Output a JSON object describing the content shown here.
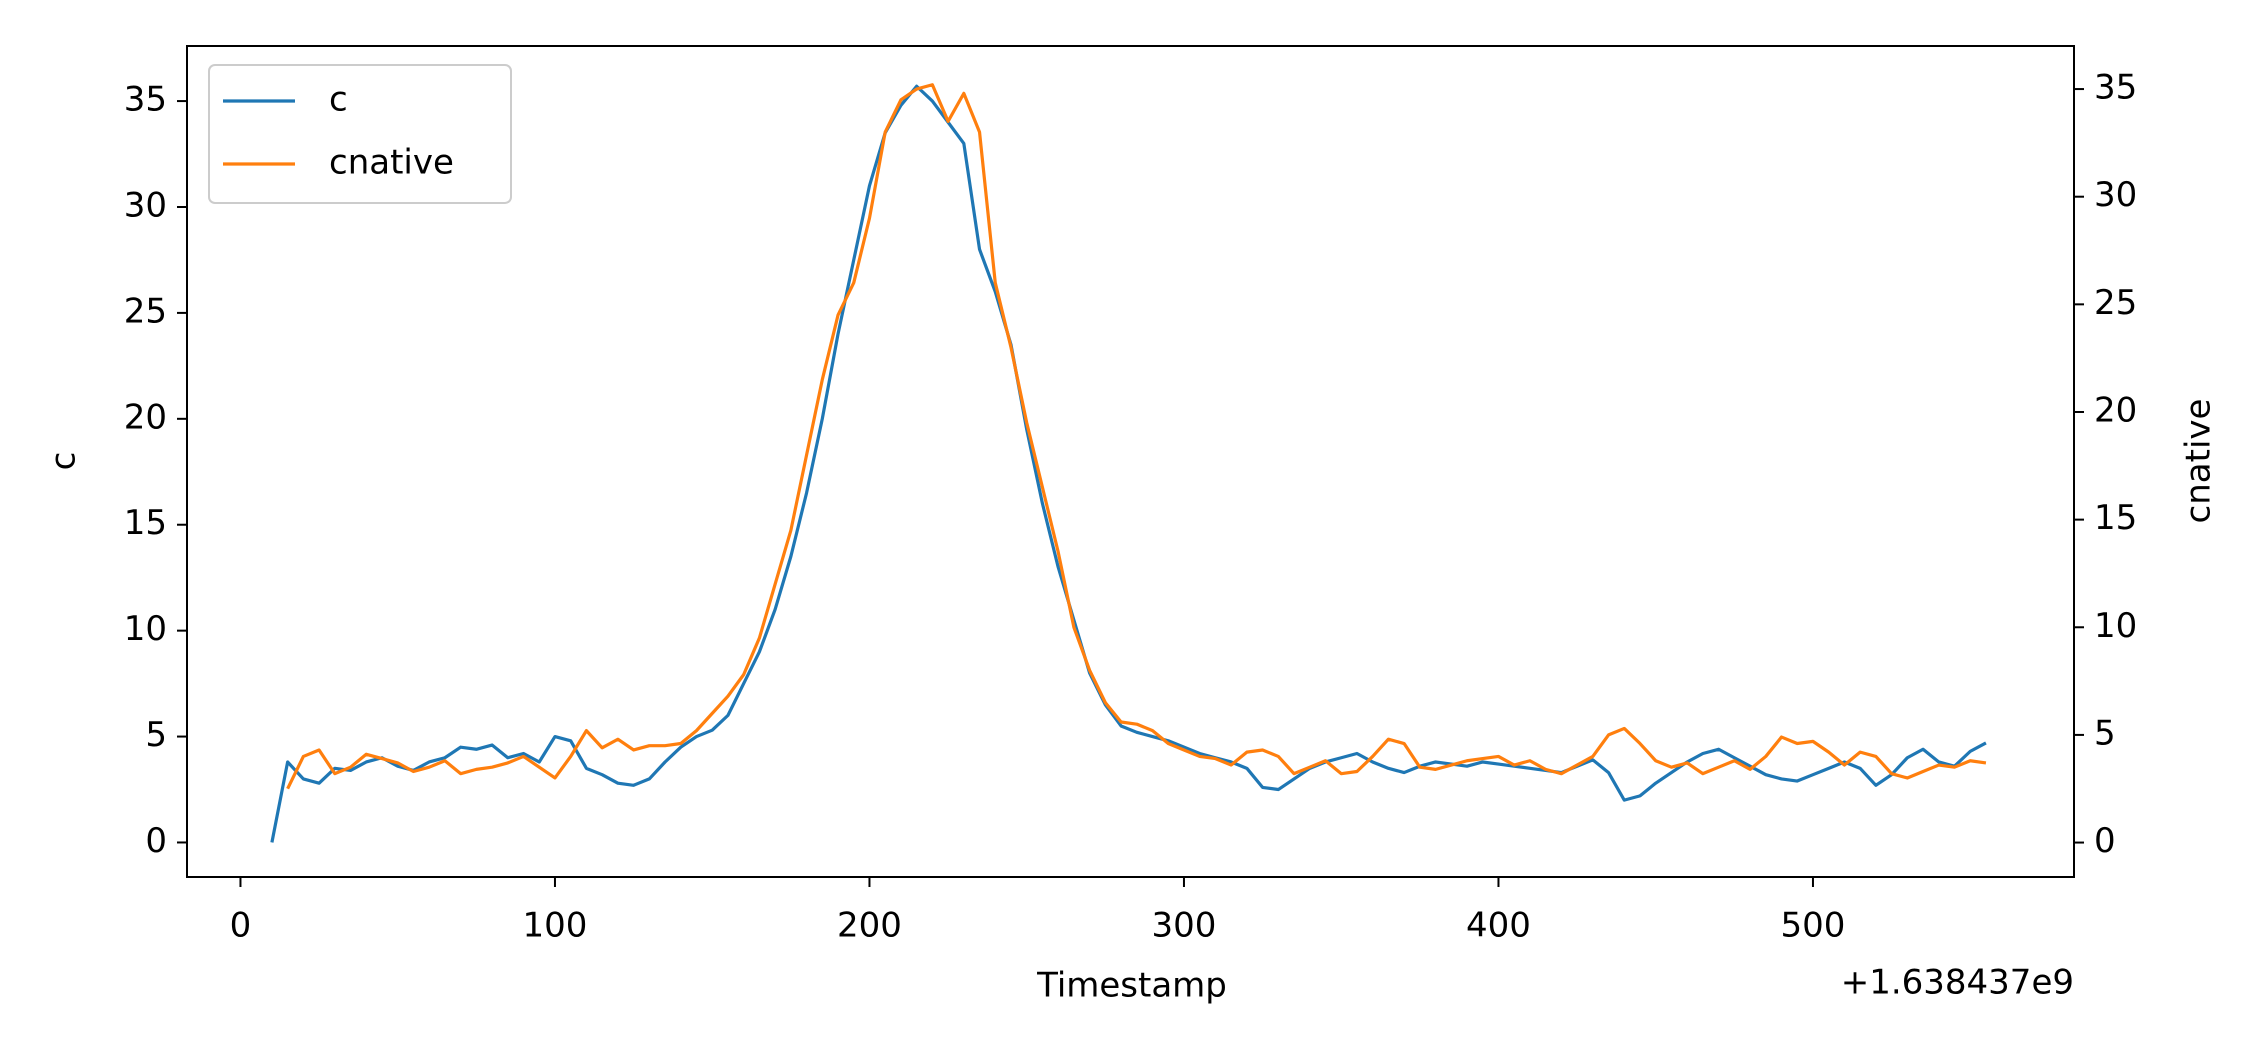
{
  "chart_data": {
    "type": "line",
    "x_label": "Timestamp",
    "y_label": "c",
    "y2_label": "cnative",
    "x_offset_label": "+1.638437e9",
    "x": [
      10,
      15,
      20,
      25,
      30,
      35,
      40,
      45,
      50,
      55,
      60,
      65,
      70,
      75,
      80,
      85,
      90,
      95,
      100,
      105,
      110,
      115,
      120,
      125,
      130,
      135,
      140,
      145,
      150,
      155,
      160,
      165,
      170,
      175,
      180,
      185,
      190,
      195,
      200,
      205,
      210,
      215,
      220,
      225,
      230,
      235,
      240,
      245,
      250,
      255,
      260,
      265,
      270,
      275,
      280,
      285,
      290,
      295,
      300,
      305,
      310,
      315,
      320,
      325,
      330,
      335,
      340,
      345,
      350,
      355,
      360,
      365,
      370,
      375,
      380,
      385,
      390,
      395,
      400,
      405,
      410,
      415,
      420,
      425,
      430,
      435,
      440,
      445,
      450,
      455,
      460,
      465,
      470,
      475,
      480,
      485,
      490,
      495,
      500,
      505,
      510,
      515,
      520,
      525,
      530,
      535,
      540,
      545,
      550,
      555
    ],
    "series": [
      {
        "name": "c",
        "color": "#1f77b4",
        "axis": "y",
        "values": [
          0,
          3.8,
          3.0,
          2.8,
          3.5,
          3.4,
          3.8,
          4.0,
          3.6,
          3.4,
          3.8,
          4.0,
          4.5,
          4.4,
          4.6,
          4.0,
          4.2,
          3.8,
          5.0,
          4.8,
          3.5,
          3.2,
          2.8,
          2.7,
          3.0,
          3.8,
          4.5,
          5.0,
          5.3,
          6.0,
          7.5,
          9.0,
          11.0,
          13.5,
          16.5,
          20.0,
          24.0,
          27.5,
          31.0,
          33.5,
          34.8,
          35.7,
          35.0,
          34.0,
          33.0,
          28.0,
          26.0,
          23.5,
          19.5,
          16.0,
          13.0,
          10.5,
          8.0,
          6.5,
          5.5,
          5.2,
          5.0,
          4.8,
          4.5,
          4.2,
          4.0,
          3.8,
          3.5,
          2.6,
          2.5,
          3.0,
          3.5,
          3.8,
          4.0,
          4.2,
          3.8,
          3.5,
          3.3,
          3.6,
          3.8,
          3.7,
          3.6,
          3.8,
          3.7,
          3.6,
          3.5,
          3.4,
          3.3,
          3.6,
          3.9,
          3.3,
          2.0,
          2.2,
          2.8,
          3.3,
          3.8,
          4.2,
          4.4,
          4.0,
          3.6,
          3.2,
          3.0,
          2.9,
          3.2,
          3.5,
          3.8,
          3.5,
          2.7,
          3.2,
          4.0,
          4.4,
          3.8,
          3.6,
          4.3,
          4.7
        ]
      },
      {
        "name": "cnative",
        "color": "#ff7f0e",
        "axis": "y2",
        "values": [
          null,
          2.5,
          4.0,
          4.3,
          3.2,
          3.5,
          4.1,
          3.9,
          3.7,
          3.3,
          3.5,
          3.8,
          3.2,
          3.4,
          3.5,
          3.7,
          4.0,
          3.5,
          3.0,
          4.0,
          5.2,
          4.4,
          4.8,
          4.3,
          4.5,
          4.5,
          4.6,
          5.2,
          6.0,
          6.8,
          7.8,
          9.5,
          12.0,
          14.5,
          18.0,
          21.5,
          24.5,
          26.0,
          29.0,
          33.0,
          34.5,
          35.0,
          35.2,
          33.5,
          34.8,
          33.0,
          26.0,
          23.0,
          19.5,
          16.5,
          13.5,
          10.0,
          8.0,
          6.5,
          5.6,
          5.5,
          5.2,
          4.6,
          4.3,
          4.0,
          3.9,
          3.6,
          4.2,
          4.3,
          4.0,
          3.2,
          3.5,
          3.8,
          3.2,
          3.3,
          4.0,
          4.8,
          4.6,
          3.5,
          3.4,
          3.6,
          3.8,
          3.9,
          4.0,
          3.6,
          3.8,
          3.4,
          3.2,
          3.6,
          4.0,
          5.0,
          5.3,
          4.6,
          3.8,
          3.5,
          3.7,
          3.2,
          3.5,
          3.8,
          3.4,
          4.0,
          4.9,
          4.6,
          4.7,
          4.2,
          3.6,
          4.2,
          4.0,
          3.2,
          3.0,
          3.3,
          3.6,
          3.5,
          3.8,
          3.7
        ]
      }
    ],
    "xlim": [
      -17,
      583
    ],
    "xticks": [
      0,
      100,
      200,
      300,
      400,
      500
    ],
    "ylim": [
      -1.63,
      37.6
    ],
    "yticks": [
      0,
      5,
      10,
      15,
      20,
      25,
      30,
      35
    ],
    "y2lim": [
      -1.6,
      37.0
    ],
    "y2ticks": [
      0,
      5,
      10,
      15,
      20,
      25,
      30,
      35
    ],
    "legend": "upper left"
  }
}
